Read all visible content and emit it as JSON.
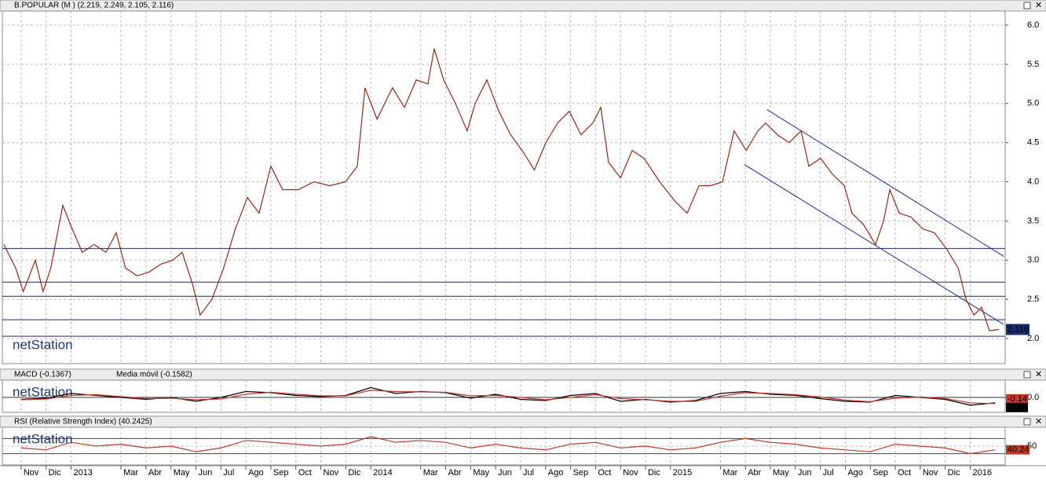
{
  "watermark": "netStation",
  "chart_data": [
    {
      "type": "line",
      "title": "B.POPULAR (M ) (2.219, 2.249, 2.105, 2.116)",
      "xlim": [
        0.25,
        40.4
      ],
      "ylim": [
        1.68,
        6.18
      ],
      "yticks": [
        {
          "value": 2,
          "label": "2.0"
        },
        2.5,
        {
          "value": 3,
          "label": "3.0"
        },
        3.5,
        {
          "value": 4,
          "label": "4.0"
        },
        4.5,
        {
          "value": 5,
          "label": "5.0"
        },
        5.5,
        {
          "value": 6,
          "label": "6.0"
        }
      ],
      "grid": true,
      "levels": [
        3.15,
        2.72,
        2.54,
        2.24,
        2.03
      ],
      "trendlines": [
        {
          "x": [
            30.87,
            40.34
          ],
          "values": [
            4.92,
            3.05
          ]
        },
        {
          "x": [
            29.96,
            40.34
          ],
          "values": [
            4.22,
            2.18
          ]
        }
      ],
      "series": [
        {
          "name": "B.POPULAR",
          "color": "#8e2a1c",
          "x": [
            0.31,
            0.78,
            1.09,
            1.57,
            1.88,
            2.19,
            2.67,
            2.98,
            3.45,
            3.92,
            4.4,
            4.81,
            5.18,
            5.65,
            6.13,
            6.6,
            7.07,
            7.45,
            7.86,
            8.17,
            8.64,
            9.11,
            9.58,
            10.06,
            10.53,
            11.0,
            11.47,
            12.1,
            12.73,
            13.36,
            13.99,
            14.46,
            14.77,
            15.25,
            15.87,
            16.35,
            16.82,
            17.29,
            17.54,
            17.92,
            18.39,
            18.86,
            19.18,
            19.65,
            20.13,
            20.6,
            21.06,
            21.55,
            22.01,
            22.48,
            22.95,
            23.42,
            23.89,
            24.21,
            24.52,
            25.0,
            25.47,
            25.94,
            26.57,
            27.19,
            27.67,
            28.14,
            28.61,
            29.08,
            29.55,
            30.03,
            30.5,
            30.81,
            31.28,
            31.75,
            32.23,
            32.54,
            33.01,
            33.48,
            33.96,
            34.27,
            34.74,
            35.21,
            35.53,
            35.78,
            36.16,
            36.63,
            37.1,
            37.57,
            38.04,
            38.52,
            38.83,
            39.15,
            39.46,
            39.77,
            40.15
          ],
          "values": [
            3.2,
            2.9,
            2.6,
            3.0,
            2.6,
            2.9,
            3.7,
            3.45,
            3.1,
            3.2,
            3.1,
            3.35,
            2.9,
            2.8,
            2.85,
            2.95,
            3.0,
            3.1,
            2.7,
            2.3,
            2.5,
            2.9,
            3.4,
            3.8,
            3.6,
            4.2,
            3.9,
            3.9,
            4.0,
            3.95,
            4.0,
            4.2,
            5.2,
            4.8,
            5.2,
            4.95,
            5.3,
            5.25,
            5.7,
            5.3,
            5.0,
            4.65,
            5.0,
            5.3,
            4.9,
            4.6,
            4.4,
            4.15,
            4.5,
            4.75,
            4.9,
            4.6,
            4.75,
            4.95,
            4.25,
            4.05,
            4.4,
            4.3,
            4.0,
            3.75,
            3.6,
            3.95,
            3.95,
            4.0,
            4.65,
            4.4,
            4.65,
            4.75,
            4.6,
            4.5,
            4.65,
            4.2,
            4.3,
            4.1,
            3.95,
            3.6,
            3.45,
            3.2,
            3.5,
            3.9,
            3.6,
            3.55,
            3.4,
            3.35,
            3.15,
            2.9,
            2.5,
            2.3,
            2.4,
            2.1,
            2.116
          ]
        }
      ]
    },
    {
      "type": "line",
      "title": "MACD (-0.1367)",
      "subtitle": "Media móvil (-0.1582)",
      "xlim": [
        0.25,
        40.4
      ],
      "ylim": [
        -0.38,
        0.44
      ],
      "yticks": [
        {
          "value": 0,
          "label": "0.0"
        }
      ],
      "grid": true,
      "badges": [
        "-0.14",
        "-0.16"
      ],
      "series": [
        {
          "name": "MACD",
          "color": "#000000",
          "x": [
            1,
            2,
            3,
            4,
            5,
            6,
            7,
            8,
            9,
            10,
            11,
            12,
            13,
            14,
            15,
            16,
            17,
            18,
            19,
            20,
            21,
            22,
            23,
            24,
            25,
            26,
            27,
            28,
            29,
            30,
            31,
            32,
            33,
            34,
            35,
            36,
            37,
            38,
            39,
            40
          ],
          "values": [
            -0.05,
            -0.02,
            0.1,
            0.05,
            0.0,
            -0.05,
            0.0,
            -0.1,
            0.0,
            0.15,
            0.12,
            0.05,
            0.02,
            0.05,
            0.25,
            0.1,
            0.15,
            0.12,
            -0.02,
            0.08,
            -0.05,
            -0.08,
            0.05,
            0.1,
            -0.1,
            -0.05,
            -0.12,
            -0.08,
            0.1,
            0.15,
            0.08,
            0.05,
            -0.03,
            -0.1,
            -0.12,
            0.05,
            0.0,
            -0.05,
            -0.2,
            -0.137
          ]
        },
        {
          "name": "Media móvil",
          "color": "#c0392b",
          "x": [
            1,
            2,
            3,
            4,
            5,
            6,
            7,
            8,
            9,
            10,
            11,
            12,
            13,
            14,
            15,
            16,
            17,
            18,
            19,
            20,
            21,
            22,
            23,
            24,
            25,
            26,
            27,
            28,
            29,
            30,
            31,
            32,
            33,
            34,
            35,
            36,
            37,
            38,
            39,
            40
          ],
          "values": [
            -0.06,
            -0.04,
            0.05,
            0.07,
            0.02,
            -0.03,
            -0.02,
            -0.06,
            -0.04,
            0.08,
            0.13,
            0.08,
            0.04,
            0.04,
            0.18,
            0.15,
            0.14,
            0.13,
            0.04,
            0.05,
            0.0,
            -0.06,
            0.0,
            0.07,
            -0.03,
            -0.06,
            -0.1,
            -0.1,
            0.03,
            0.12,
            0.1,
            0.07,
            0.01,
            -0.07,
            -0.11,
            -0.02,
            0.01,
            -0.03,
            -0.14,
            -0.158
          ]
        }
      ]
    },
    {
      "type": "line",
      "title": "RSI (Relative Strength Index) (40.2425)",
      "xlim": [
        0.25,
        40.4
      ],
      "ylim": [
        0,
        100
      ],
      "yticks": [
        50
      ],
      "levels": [
        30,
        70
      ],
      "grid": true,
      "badge": "40.24",
      "xticks": [
        {
          "value": 1,
          "label": "Nov"
        },
        {
          "value": 2,
          "label": "Dic"
        },
        {
          "value": 3,
          "label": "2013"
        },
        {
          "value": 5,
          "label": "Mar"
        },
        {
          "value": 6,
          "label": "Abr"
        },
        {
          "value": 7,
          "label": "May"
        },
        {
          "value": 8,
          "label": "Jun"
        },
        {
          "value": 9,
          "label": "Jul"
        },
        {
          "value": 10,
          "label": "Ago"
        },
        {
          "value": 11,
          "label": "Sep"
        },
        {
          "value": 12,
          "label": "Oct"
        },
        {
          "value": 13,
          "label": "Nov"
        },
        {
          "value": 14,
          "label": "Dic"
        },
        {
          "value": 15,
          "label": "2014"
        },
        {
          "value": 17,
          "label": "Mar"
        },
        {
          "value": 18,
          "label": "Abr"
        },
        {
          "value": 19,
          "label": "May"
        },
        {
          "value": 20,
          "label": "Jun"
        },
        {
          "value": 21,
          "label": "Jul"
        },
        {
          "value": 22,
          "label": "Ago"
        },
        {
          "value": 23,
          "label": "Sep"
        },
        {
          "value": 24,
          "label": "Oct"
        },
        {
          "value": 25,
          "label": "Nov"
        },
        {
          "value": 26,
          "label": "Dic"
        },
        {
          "value": 27,
          "label": "2015"
        },
        {
          "value": 29,
          "label": "Mar"
        },
        {
          "value": 30,
          "label": "Abr"
        },
        {
          "value": 31,
          "label": "May"
        },
        {
          "value": 32,
          "label": "Jun"
        },
        {
          "value": 33,
          "label": "Jul"
        },
        {
          "value": 34,
          "label": "Ago"
        },
        {
          "value": 35,
          "label": "Sep"
        },
        {
          "value": 36,
          "label": "Oct"
        },
        {
          "value": 37,
          "label": "Nov"
        },
        {
          "value": 38,
          "label": "Dic"
        },
        {
          "value": 39,
          "label": "2016"
        }
      ],
      "series": [
        {
          "name": "RSI",
          "color": "#c0392b",
          "x": [
            1,
            2,
            3,
            4,
            5,
            6,
            7,
            8,
            9,
            10,
            11,
            12,
            13,
            14,
            15,
            16,
            17,
            18,
            19,
            20,
            21,
            22,
            23,
            24,
            25,
            26,
            27,
            28,
            29,
            30,
            31,
            32,
            33,
            34,
            35,
            36,
            37,
            38,
            39,
            40
          ],
          "values": [
            45,
            40,
            60,
            50,
            55,
            45,
            50,
            35,
            45,
            65,
            60,
            55,
            50,
            55,
            75,
            60,
            65,
            60,
            45,
            55,
            45,
            40,
            55,
            60,
            45,
            50,
            40,
            45,
            60,
            70,
            60,
            55,
            45,
            40,
            35,
            55,
            50,
            45,
            30,
            40.2425
          ]
        }
      ]
    }
  ]
}
